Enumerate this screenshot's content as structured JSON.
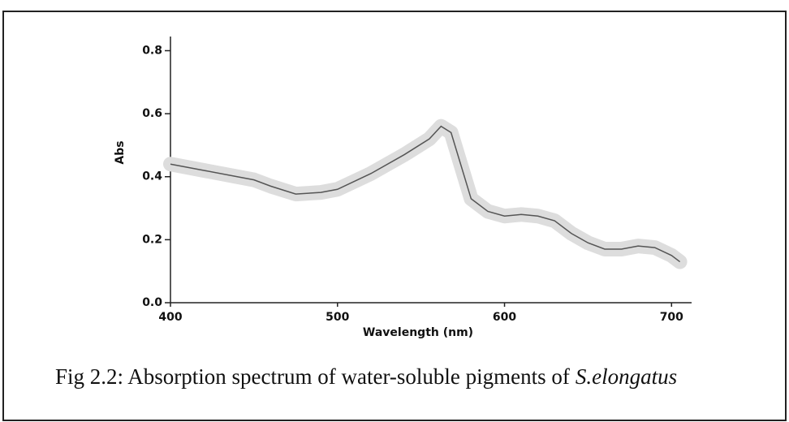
{
  "chart_data": {
    "type": "line",
    "x_label": "Wavelength (nm)",
    "y_label": "Abs",
    "caption": {
      "text": "Fig 2.2: Absorption spectrum of water-soluble pigments of",
      "species": "S.elongatus"
    },
    "x": [
      400,
      420,
      440,
      450,
      460,
      475,
      490,
      500,
      520,
      540,
      555,
      562,
      568,
      580,
      590,
      600,
      610,
      620,
      630,
      640,
      650,
      660,
      670,
      680,
      690,
      700,
      705
    ],
    "series": [
      {
        "name": "Abs",
        "color": "#555555",
        "values": [
          0.44,
          0.42,
          0.4,
          0.39,
          0.37,
          0.345,
          0.35,
          0.36,
          0.41,
          0.47,
          0.52,
          0.56,
          0.54,
          0.33,
          0.29,
          0.275,
          0.28,
          0.275,
          0.26,
          0.22,
          0.19,
          0.17,
          0.17,
          0.18,
          0.175,
          0.15,
          0.13
        ]
      }
    ],
    "xlim": [
      400,
      712
    ],
    "ylim": [
      0,
      0.845
    ],
    "xticks": [
      400,
      500,
      600,
      700
    ],
    "yticks": [
      {
        "value": 0,
        "label": "0.0"
      },
      0.2,
      0.4,
      0.6,
      0.8
    ],
    "band_color": "#dddddd"
  }
}
